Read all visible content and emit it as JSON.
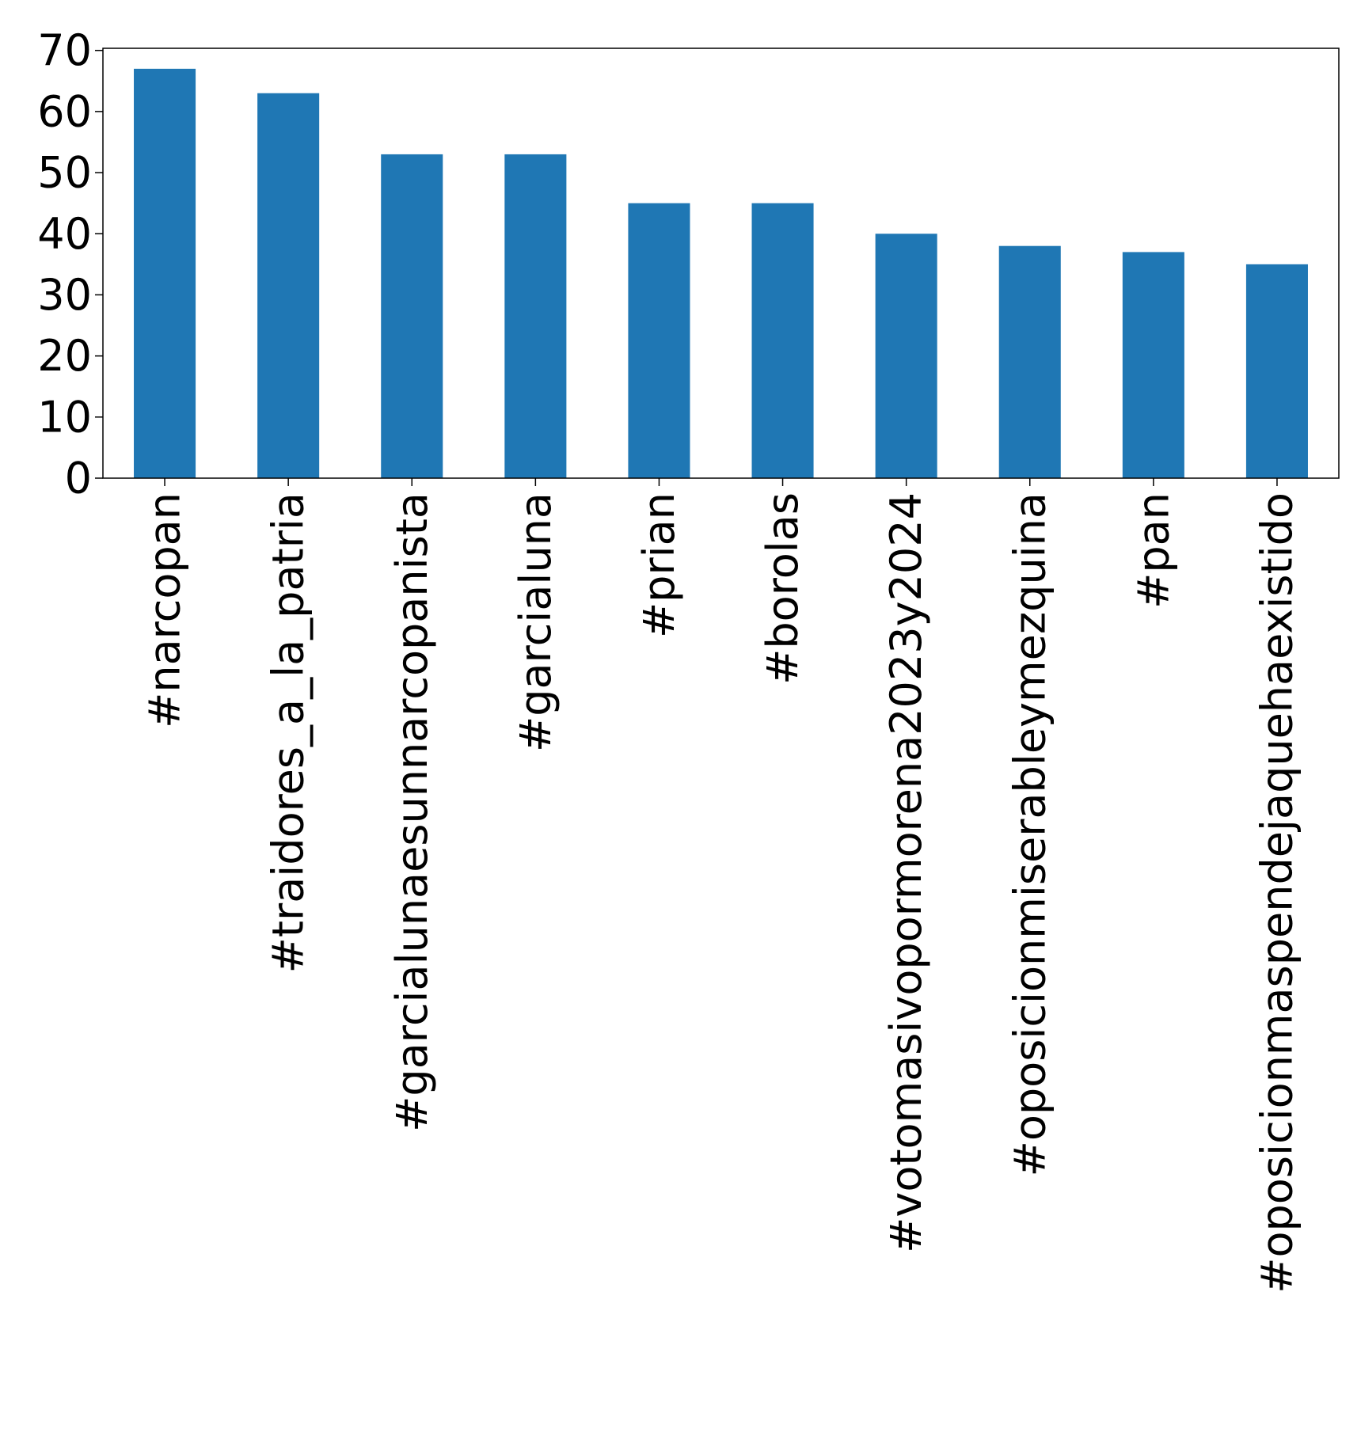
{
  "chart_data": {
    "type": "bar",
    "categories": [
      "#narcopan",
      "#traidores_a_la_patria",
      "#garcialunaesunnarcopanista",
      "#garcialuna",
      "#prian",
      "#borolas",
      "#votomasivopormorena2023y2024",
      "#oposicionmiserableymezquina",
      "#pan",
      "#oposicionmaspendejaquehaexistido"
    ],
    "series": [
      {
        "values": [
          67,
          63,
          53,
          53,
          45,
          45,
          40,
          38,
          37,
          35
        ]
      }
    ],
    "ylim": [
      0,
      70.35
    ],
    "yticks": [
      0,
      10,
      20,
      30,
      40,
      50,
      60,
      70
    ],
    "ytick_labels": [
      "0",
      "10",
      "20",
      "30",
      "40",
      "50",
      "60",
      "70"
    ],
    "xlabel": "",
    "ylabel": "",
    "title": "",
    "grid": false,
    "legend": "none",
    "bar_color": "#1f77b4"
  }
}
